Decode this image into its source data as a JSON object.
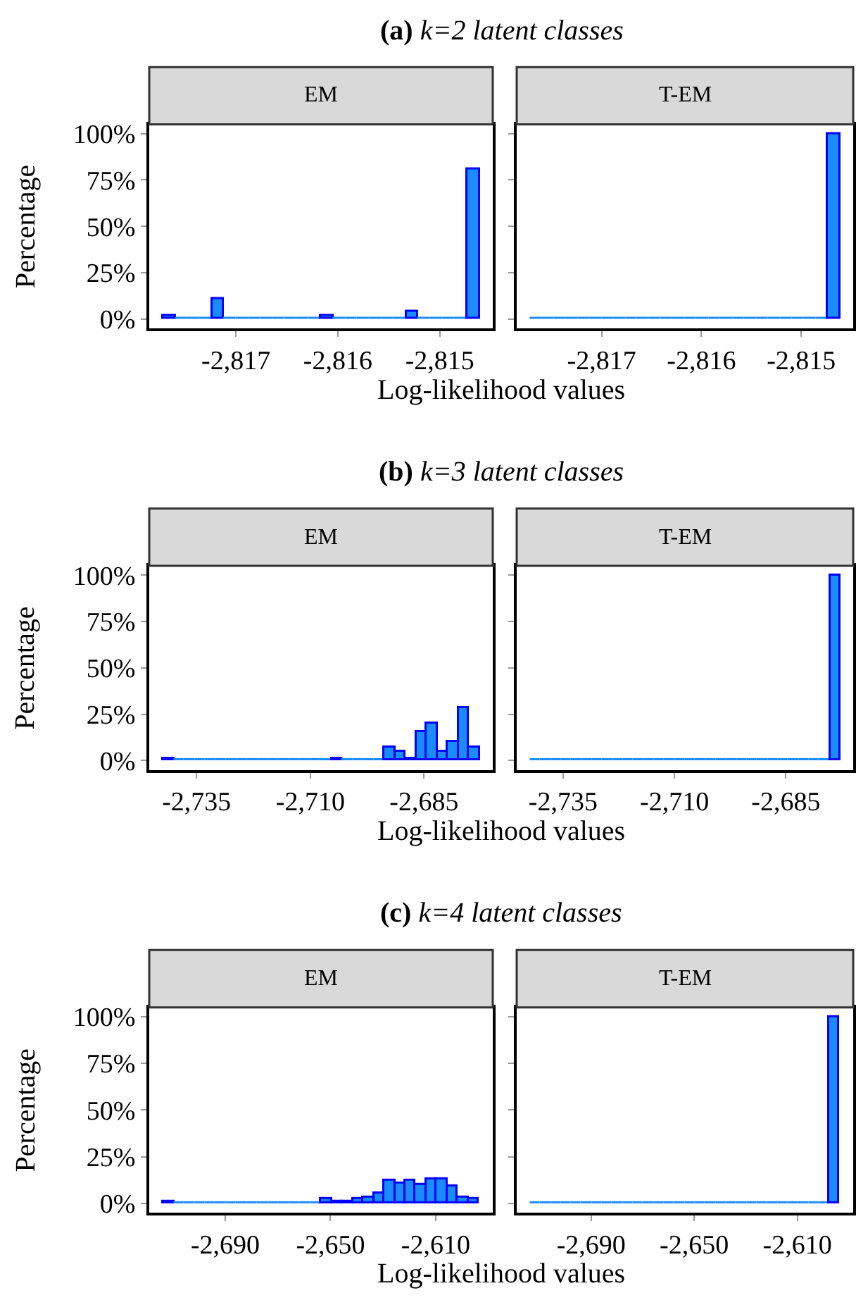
{
  "chart_data": [
    {
      "type": "histogram",
      "title": "(a) k=2 latent classes",
      "subtitle": "EM",
      "xlabel": "Log-likelihood values",
      "ylabel": "Percentage",
      "color": "#1a8cff",
      "bins": [
        -2817.71,
        -2817.591,
        -2817.472,
        -2817.352,
        -2817.233,
        -2817.114,
        -2816.995,
        -2816.875,
        -2816.756,
        -2816.637,
        -2816.518,
        -2816.398,
        -2816.279,
        -2816.16,
        -2816.041,
        -2815.922,
        -2815.802,
        -2815.683,
        -2815.564,
        -2815.445,
        -2815.325,
        -2815.206,
        -2815.087,
        -2814.968,
        -2814.848,
        -2814.729,
        -2814.61
      ],
      "values": [
        2,
        0,
        0,
        0,
        11,
        0,
        0,
        0,
        0,
        0,
        0,
        0,
        0,
        2,
        0,
        0,
        0,
        0,
        0,
        0,
        4,
        0,
        0,
        0,
        0,
        81
      ],
      "xlim": [
        -2817.85,
        -2814.48
      ],
      "xticks": [
        {
          "value": -2817,
          "label": "-2,817"
        },
        {
          "value": -2816,
          "label": "-2,816"
        },
        {
          "value": -2815,
          "label": "-2,815"
        }
      ],
      "ylim": [
        -5,
        105
      ],
      "yticks": [
        {
          "value": 0,
          "label": "0%"
        },
        {
          "value": 25,
          "label": "25%"
        },
        {
          "value": 50,
          "label": "50%"
        },
        {
          "value": 75,
          "label": "75%"
        },
        {
          "value": 100,
          "label": "100%"
        }
      ]
    },
    {
      "type": "histogram",
      "subtitle": "T-EM",
      "color": "#1a8cff",
      "tick_labels": "x",
      "bins": [
        -2817.71,
        -2817.591,
        -2817.472,
        -2817.352,
        -2817.233,
        -2817.114,
        -2816.995,
        -2816.875,
        -2816.756,
        -2816.637,
        -2816.518,
        -2816.398,
        -2816.279,
        -2816.16,
        -2816.041,
        -2815.922,
        -2815.802,
        -2815.683,
        -2815.564,
        -2815.445,
        -2815.325,
        -2815.206,
        -2815.087,
        -2814.968,
        -2814.848,
        -2814.729,
        -2814.61
      ],
      "values": [
        0,
        0,
        0,
        0,
        0,
        0,
        0,
        0,
        0,
        0,
        0,
        0,
        0,
        0,
        0,
        0,
        0,
        0,
        0,
        0,
        0,
        0,
        0,
        0,
        0,
        100
      ],
      "xlim": [
        -2817.85,
        -2814.48
      ],
      "xticks": [
        {
          "value": -2817,
          "label": "-2,817"
        },
        {
          "value": -2816,
          "label": "-2,816"
        },
        {
          "value": -2815,
          "label": "-2,815"
        }
      ],
      "ylim": [
        -5,
        105
      ],
      "yticks": [
        {
          "value": 0,
          "label": null
        },
        {
          "value": 25,
          "label": null
        },
        {
          "value": 50,
          "label": null
        },
        {
          "value": 75,
          "label": null
        },
        {
          "value": 100,
          "label": null
        }
      ]
    },
    {
      "type": "histogram",
      "title": "(b) k=3 latent classes",
      "subtitle": "EM",
      "xlabel": "Log-likelihood values",
      "ylabel": "Percentage",
      "color": "#1a8cff",
      "bins": [
        -2742.3,
        -2739.98,
        -2737.66,
        -2735.34,
        -2733.02,
        -2730.7,
        -2728.38,
        -2726.06,
        -2723.74,
        -2721.42,
        -2719.1,
        -2716.78,
        -2714.46,
        -2712.14,
        -2709.82,
        -2707.5,
        -2705.18,
        -2702.86,
        -2700.54,
        -2698.22,
        -2695.9,
        -2693.58,
        -2691.26,
        -2688.94,
        -2686.62,
        -2684.3,
        -2681.98,
        -2679.66,
        -2677.34,
        -2675.02,
        -2672.7
      ],
      "values": [
        1,
        0,
        0,
        0,
        0,
        0,
        0,
        0,
        0,
        0,
        0,
        0,
        0,
        0,
        0,
        0,
        1,
        0,
        0,
        0,
        0,
        7,
        5,
        1,
        15,
        20,
        5,
        10,
        28,
        7
      ],
      "xlim": [
        -2745.4,
        -2669.9
      ],
      "xticks": [
        {
          "value": -2735,
          "label": "-2,735"
        },
        {
          "value": -2710,
          "label": "-2,710"
        },
        {
          "value": -2685,
          "label": "-2,685"
        }
      ],
      "ylim": [
        -5,
        105
      ],
      "yticks": [
        {
          "value": 0,
          "label": "0%"
        },
        {
          "value": 25,
          "label": "25%"
        },
        {
          "value": 50,
          "label": "50%"
        },
        {
          "value": 75,
          "label": "75%"
        },
        {
          "value": 100,
          "label": "100%"
        }
      ]
    },
    {
      "type": "histogram",
      "subtitle": "T-EM",
      "color": "#1a8cff",
      "tick_labels": "x",
      "bins": [
        -2742.3,
        -2739.98,
        -2737.66,
        -2735.34,
        -2733.02,
        -2730.7,
        -2728.38,
        -2726.06,
        -2723.74,
        -2721.42,
        -2719.1,
        -2716.78,
        -2714.46,
        -2712.14,
        -2709.82,
        -2707.5,
        -2705.18,
        -2702.86,
        -2700.54,
        -2698.22,
        -2695.9,
        -2693.58,
        -2691.26,
        -2688.94,
        -2686.62,
        -2684.3,
        -2681.98,
        -2679.66,
        -2677.34,
        -2675.02,
        -2672.7
      ],
      "values": [
        0,
        0,
        0,
        0,
        0,
        0,
        0,
        0,
        0,
        0,
        0,
        0,
        0,
        0,
        0,
        0,
        0,
        0,
        0,
        0,
        0,
        0,
        0,
        0,
        0,
        0,
        0,
        0,
        0,
        100
      ],
      "xlim": [
        -2745.4,
        -2669.9
      ],
      "xticks": [
        {
          "value": -2735,
          "label": "-2,735"
        },
        {
          "value": -2710,
          "label": "-2,710"
        },
        {
          "value": -2685,
          "label": "-2,685"
        }
      ],
      "ylim": [
        -5,
        105
      ],
      "yticks": [
        {
          "value": 0,
          "label": null
        },
        {
          "value": 25,
          "label": null
        },
        {
          "value": 50,
          "label": null
        },
        {
          "value": 75,
          "label": null
        },
        {
          "value": 100,
          "label": null
        }
      ]
    },
    {
      "type": "histogram",
      "title": "(c) k=4 latent classes",
      "subtitle": "EM",
      "xlabel": "Log-likelihood values",
      "ylabel": "Percentage",
      "color": "#1a8cff",
      "bins": [
        -2713.5,
        -2709.5,
        -2705.5,
        -2701.5,
        -2697.5,
        -2693.5,
        -2689.5,
        -2685.5,
        -2681.5,
        -2677.5,
        -2673.5,
        -2669.5,
        -2665.5,
        -2661.5,
        -2657.5,
        -2653.5,
        -2649.5,
        -2645.5,
        -2641.5,
        -2637.5,
        -2633.5,
        -2629.5,
        -2625.5,
        -2621.5,
        -2617.5,
        -2613.5,
        -2609.5,
        -2605.5,
        -2601.5,
        -2597.5,
        -2593.5
      ],
      "values": [
        1,
        0,
        0,
        0,
        0,
        0,
        0,
        0,
        0,
        0,
        0,
        0,
        0,
        0,
        0,
        2,
        1,
        1,
        2,
        3,
        5,
        12,
        11,
        12,
        10,
        13,
        13,
        9,
        3,
        2
      ],
      "xlim": [
        -2718.9,
        -2588.3
      ],
      "xticks": [
        {
          "value": -2690,
          "label": "-2,690"
        },
        {
          "value": -2650,
          "label": "-2,650"
        },
        {
          "value": -2610,
          "label": "-2,610"
        }
      ],
      "ylim": [
        -5,
        105
      ],
      "yticks": [
        {
          "value": 0,
          "label": "0%"
        },
        {
          "value": 25,
          "label": "25%"
        },
        {
          "value": 50,
          "label": "50%"
        },
        {
          "value": 75,
          "label": "75%"
        },
        {
          "value": 100,
          "label": "100%"
        }
      ]
    },
    {
      "type": "histogram",
      "subtitle": "T-EM",
      "color": "#1a8cff",
      "tick_labels": "x",
      "bins": [
        -2713.5,
        -2709.5,
        -2705.5,
        -2701.5,
        -2697.5,
        -2693.5,
        -2689.5,
        -2685.5,
        -2681.5,
        -2677.5,
        -2673.5,
        -2669.5,
        -2665.5,
        -2661.5,
        -2657.5,
        -2653.5,
        -2649.5,
        -2645.5,
        -2641.5,
        -2637.5,
        -2633.5,
        -2629.5,
        -2625.5,
        -2621.5,
        -2617.5,
        -2613.5,
        -2609.5,
        -2605.5,
        -2601.5,
        -2597.5,
        -2593.5
      ],
      "values": [
        0,
        0,
        0,
        0,
        0,
        0,
        0,
        0,
        0,
        0,
        0,
        0,
        0,
        0,
        0,
        0,
        0,
        0,
        0,
        0,
        0,
        0,
        0,
        0,
        0,
        0,
        0,
        0,
        0,
        100
      ],
      "xlim": [
        -2718.9,
        -2588.3
      ],
      "xticks": [
        {
          "value": -2690,
          "label": "-2,690"
        },
        {
          "value": -2650,
          "label": "-2,650"
        },
        {
          "value": -2610,
          "label": "-2,610"
        }
      ],
      "ylim": [
        -5,
        105
      ],
      "yticks": [
        {
          "value": 0,
          "label": null
        },
        {
          "value": 25,
          "label": null
        },
        {
          "value": 50,
          "label": null
        },
        {
          "value": 75,
          "label": null
        },
        {
          "value": 100,
          "label": null
        }
      ]
    }
  ]
}
